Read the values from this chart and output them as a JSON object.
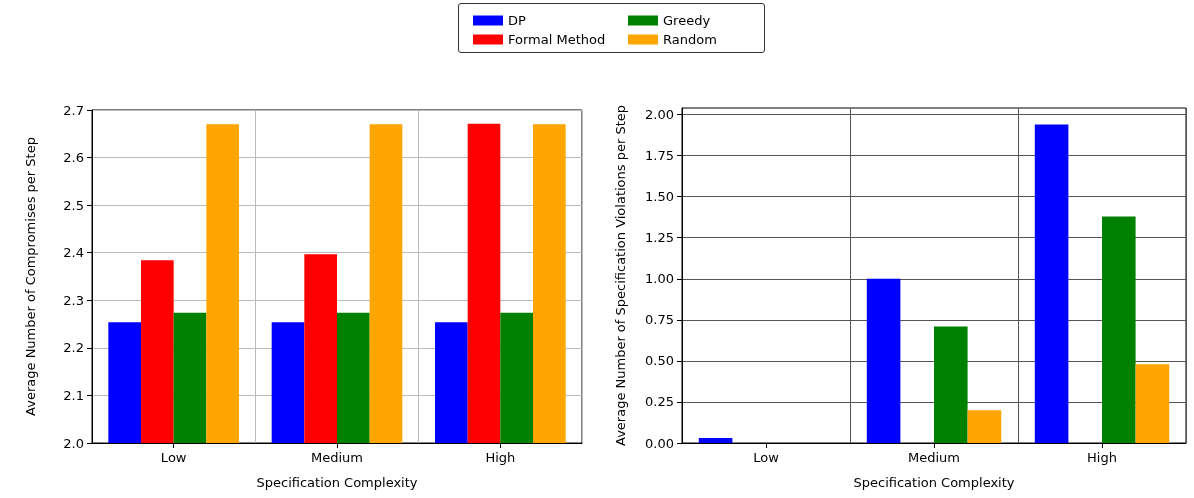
{
  "chart_data": [
    {
      "type": "bar",
      "xlabel": "Specification Complexity",
      "ylabel": "Average Number of Compromises per Step",
      "categories": [
        "Low",
        "Medium",
        "High"
      ],
      "series": [
        {
          "name": "DP",
          "color": "#0000ff",
          "values": [
            2.254,
            2.254,
            2.254
          ]
        },
        {
          "name": "Formal Method",
          "color": "#ff0000",
          "values": [
            2.384,
            2.397,
            2.671
          ]
        },
        {
          "name": "Greedy",
          "color": "#008000",
          "values": [
            2.274,
            2.274,
            2.274
          ]
        },
        {
          "name": "Random",
          "color": "#ffa500",
          "values": [
            2.67,
            2.67,
            2.67
          ]
        }
      ],
      "ylim": [
        2.0,
        2.7
      ],
      "yticks": [
        {
          "value": 2.0,
          "label": "2.0"
        },
        2.1,
        2.2,
        2.3,
        2.4,
        2.5,
        2.6,
        2.7
      ],
      "grid": true,
      "legend": "top"
    },
    {
      "type": "bar",
      "xlabel": "Specification Complexity",
      "ylabel": "Average Number of Specification Violations per Step",
      "categories": [
        "Low",
        "Medium",
        "High"
      ],
      "series": [
        {
          "color": "#0000ff",
          "values": [
            0.03,
            1.0,
            1.94
          ]
        },
        {
          "color": "#ff0000",
          "values": [
            0,
            0,
            0
          ]
        },
        {
          "color": "#008000",
          "values": [
            0,
            0.71,
            1.38
          ]
        },
        {
          "color": "#ffa500",
          "values": [
            0,
            0.2,
            0.48
          ]
        }
      ],
      "ylim": [
        0,
        2.04
      ],
      "yticks": [
        {
          "value": 0,
          "label": "0.00"
        },
        {
          "value": 0.25,
          "label": "0.25"
        },
        {
          "value": 0.5,
          "label": "0.50"
        },
        {
          "value": 0.75,
          "label": "0.75"
        },
        {
          "value": 1.0,
          "label": "1.00"
        },
        {
          "value": 1.25,
          "label": "1.25"
        },
        {
          "value": 1.5,
          "label": "1.50"
        },
        {
          "value": 1.75,
          "label": "1.75"
        },
        {
          "value": 2.0,
          "label": "2.00"
        }
      ],
      "grid": true,
      "legend": false
    }
  ]
}
